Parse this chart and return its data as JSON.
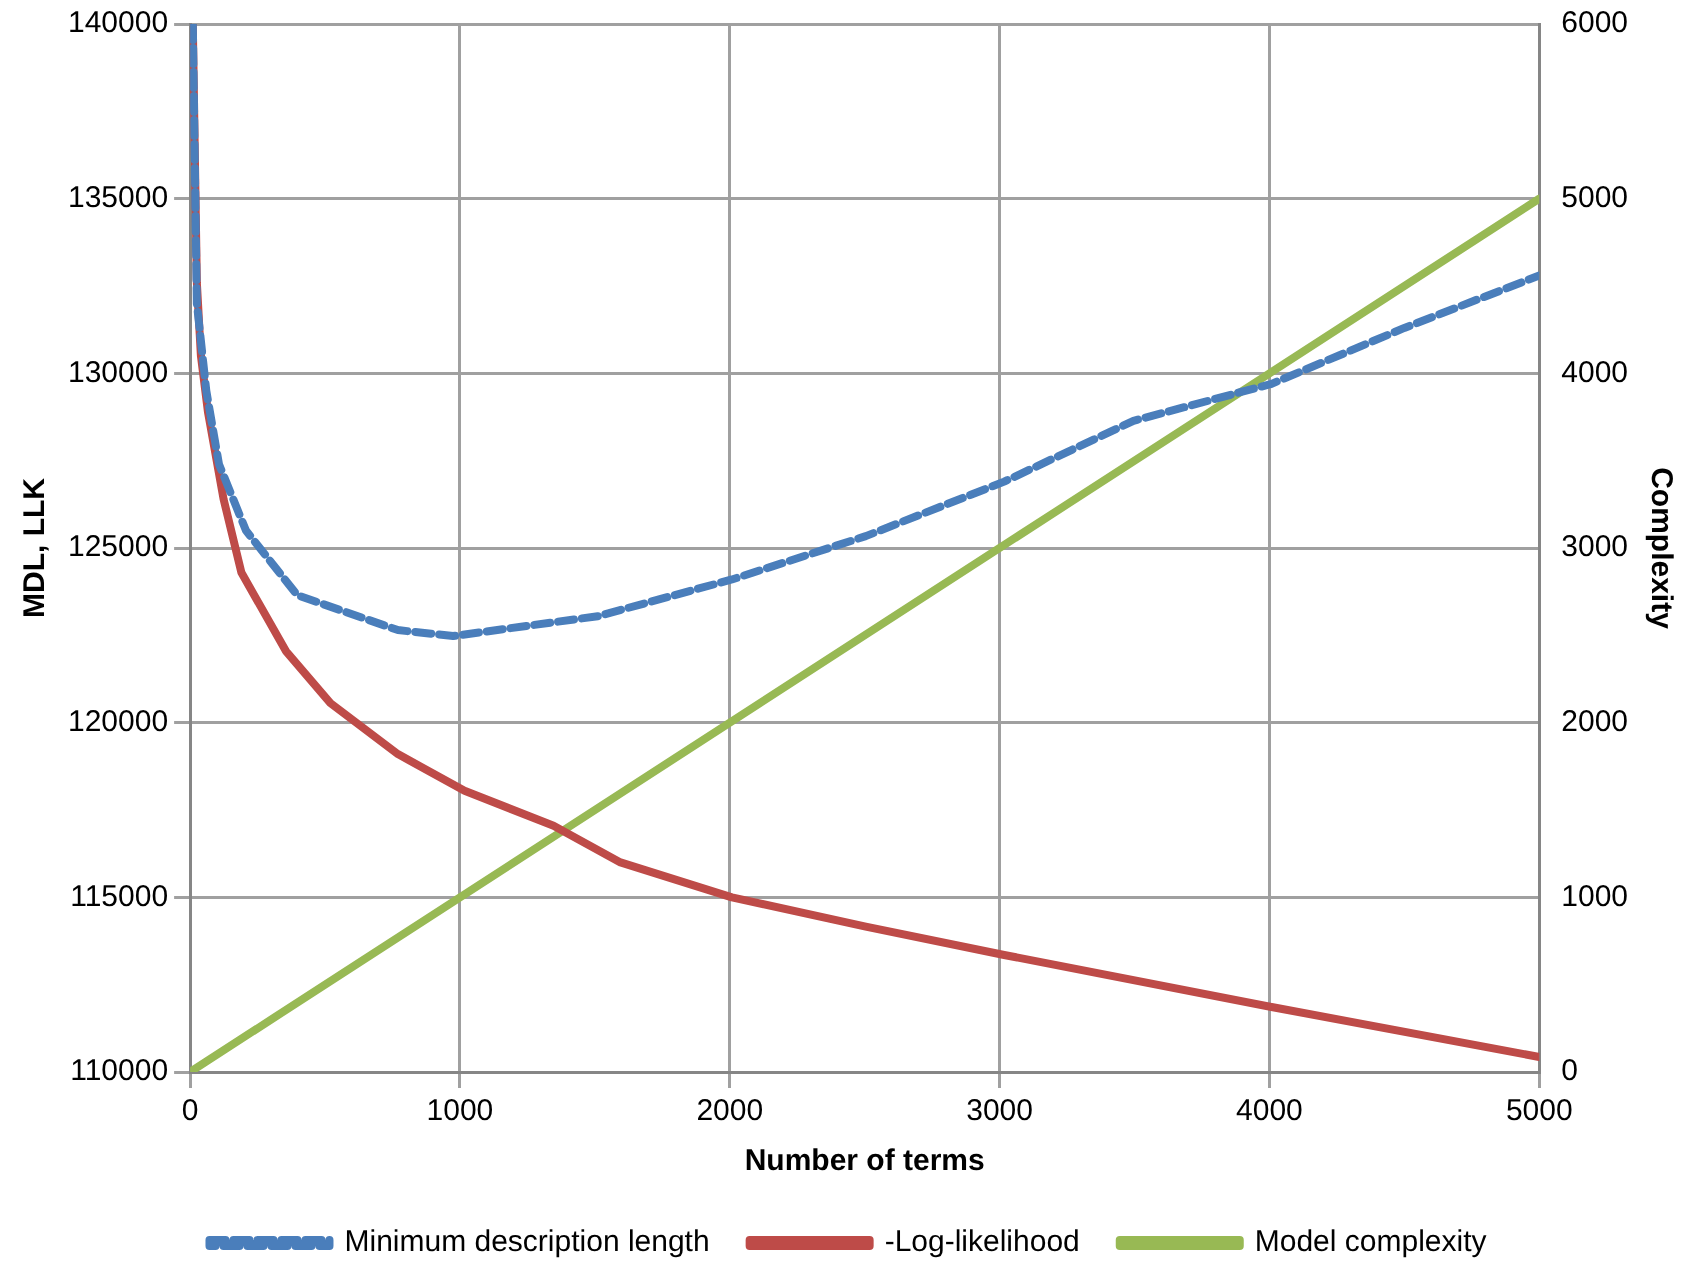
{
  "chart_data": {
    "type": "line",
    "xlabel": "Number of terms",
    "ylabel": "MDL, LLK",
    "y2label": "Complexity",
    "xlim": [
      0,
      5000
    ],
    "xticks": [
      0,
      1000,
      2000,
      3000,
      4000,
      5000
    ],
    "ylim": [
      110000,
      140000
    ],
    "yticks": [
      110000,
      115000,
      120000,
      125000,
      130000,
      135000,
      140000
    ],
    "y2lim": [
      0,
      6000
    ],
    "y2ticks": [
      0,
      1000,
      2000,
      3000,
      4000,
      5000,
      6000
    ],
    "grid": true,
    "legend": "bottom",
    "marker": "none",
    "series": [
      {
        "name": "Minimum description length",
        "color": "#4a7ebb",
        "line_style": "dashed",
        "x": [
          10,
          25,
          60,
          107,
          207,
          397,
          770,
          975,
          1512,
          2008,
          2504,
          3017,
          3496,
          4008,
          4500,
          5000
        ],
        "values": [
          140000,
          132000,
          129500,
          127400,
          125500,
          123650,
          122650,
          122480,
          123050,
          124100,
          125340,
          126900,
          128640,
          129700,
          131300,
          132800
        ]
      },
      {
        "name": "-Log-likelihood",
        "color": "#be4b48",
        "line_style": "solid",
        "x": [
          10,
          25,
          40,
          66,
          124,
          190,
          355,
          520,
          770,
          1017,
          1347,
          1595,
          2008,
          2504,
          3017,
          4008,
          5000
        ],
        "values": [
          140000,
          132600,
          130500,
          128900,
          126400,
          124300,
          122050,
          120560,
          119100,
          118050,
          117050,
          116000,
          115000,
          114160,
          113350,
          111860,
          110430
        ]
      },
      {
        "name": "Model complexity",
        "color": "#98b954",
        "line_style": "solid",
        "axis": "y2",
        "x": [
          0,
          5000
        ],
        "values": [
          0,
          5000
        ]
      }
    ]
  }
}
